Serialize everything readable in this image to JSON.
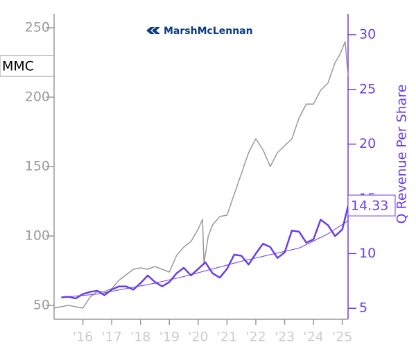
{
  "chart_data": {
    "type": "line",
    "logo_text": "MarshMcLennan",
    "ticker": "MMC",
    "y2label": "Q Revenue Per Share",
    "xlim": [
      2015.0,
      2025.2
    ],
    "xticks": [
      {
        "value": 2016,
        "label": "'16"
      },
      {
        "value": 2017,
        "label": "'17"
      },
      {
        "value": 2018,
        "label": "'18"
      },
      {
        "value": 2019,
        "label": "'19"
      },
      {
        "value": 2020,
        "label": "'20"
      },
      {
        "value": 2021,
        "label": "'21"
      },
      {
        "value": 2022,
        "label": "'22"
      },
      {
        "value": 2023,
        "label": "'23"
      },
      {
        "value": 2024,
        "label": "'24"
      },
      {
        "value": 2025,
        "label": "'25"
      }
    ],
    "ylim": [
      40,
      260
    ],
    "yticks": [
      50,
      100,
      150,
      200,
      250
    ],
    "y2lim": [
      4,
      31.9
    ],
    "y2ticks": [
      5,
      10,
      15,
      20,
      25,
      30
    ],
    "left_axis_color": "#999999",
    "right_axis_color": "#6a3de8",
    "series": [
      {
        "color": "#999999",
        "width": 1.5,
        "x": [
          2015.0,
          2015.5,
          2016.0,
          2016.25,
          2016.5,
          2016.75,
          2017.0,
          2017.25,
          2017.5,
          2017.75,
          2018.0,
          2018.25,
          2018.5,
          2018.75,
          2019.0,
          2019.25,
          2019.5,
          2019.75,
          2020.0,
          2020.15,
          2020.2,
          2020.35,
          2020.5,
          2020.75,
          2021.0,
          2021.25,
          2021.5,
          2021.75,
          2022.0,
          2022.25,
          2022.5,
          2022.75,
          2023.0,
          2023.25,
          2023.5,
          2023.75,
          2024.0,
          2024.25,
          2024.5,
          2024.75,
          2024.9,
          2025.0,
          2025.1,
          2025.2
        ],
        "values": [
          48,
          50,
          48,
          56,
          60,
          60,
          62,
          68,
          72,
          76,
          77,
          76,
          78,
          76,
          74,
          86,
          92,
          96,
          105,
          112,
          80,
          100,
          108,
          114,
          115,
          130,
          145,
          160,
          170,
          162,
          150,
          160,
          165,
          170,
          185,
          195,
          195,
          205,
          210,
          225,
          230,
          235,
          240,
          215
        ]
      },
      {
        "color": "#6a3de8",
        "width": 2.5,
        "axis": "y2",
        "x": [
          2015.25,
          2015.5,
          2015.75,
          2016.0,
          2016.25,
          2016.5,
          2016.75,
          2017.0,
          2017.25,
          2017.5,
          2017.75,
          2018.0,
          2018.25,
          2018.5,
          2018.75,
          2019.0,
          2019.25,
          2019.5,
          2019.75,
          2020.0,
          2020.25,
          2020.5,
          2020.75,
          2021.0,
          2021.25,
          2021.5,
          2021.75,
          2022.0,
          2022.25,
          2022.5,
          2022.75,
          2023.0,
          2023.25,
          2023.5,
          2023.75,
          2024.0,
          2024.25,
          2024.5,
          2024.75,
          2025.0,
          2025.2
        ],
        "values": [
          6.0,
          6.05,
          5.9,
          6.3,
          6.5,
          6.6,
          6.2,
          6.7,
          7.0,
          7.0,
          6.7,
          7.3,
          8.0,
          7.4,
          7.0,
          7.4,
          8.2,
          8.7,
          8.0,
          8.6,
          9.2,
          8.2,
          7.8,
          8.6,
          9.9,
          9.8,
          9.0,
          10.0,
          10.9,
          10.6,
          9.6,
          10.1,
          12.1,
          12.0,
          11.0,
          11.3,
          13.1,
          12.6,
          11.6,
          12.2,
          14.33
        ]
      },
      {
        "color": "#6a3de8",
        "width": 1,
        "axis": "y2",
        "x": [
          2015.25,
          2016.5,
          2017.5,
          2018.5,
          2019.5,
          2020.5,
          2021.5,
          2022.5,
          2023.5,
          2024.5,
          2025.2
        ],
        "values": [
          6.0,
          6.3,
          6.8,
          7.3,
          7.9,
          8.6,
          9.3,
          9.9,
          10.5,
          11.8,
          13.0
        ]
      }
    ]
  }
}
